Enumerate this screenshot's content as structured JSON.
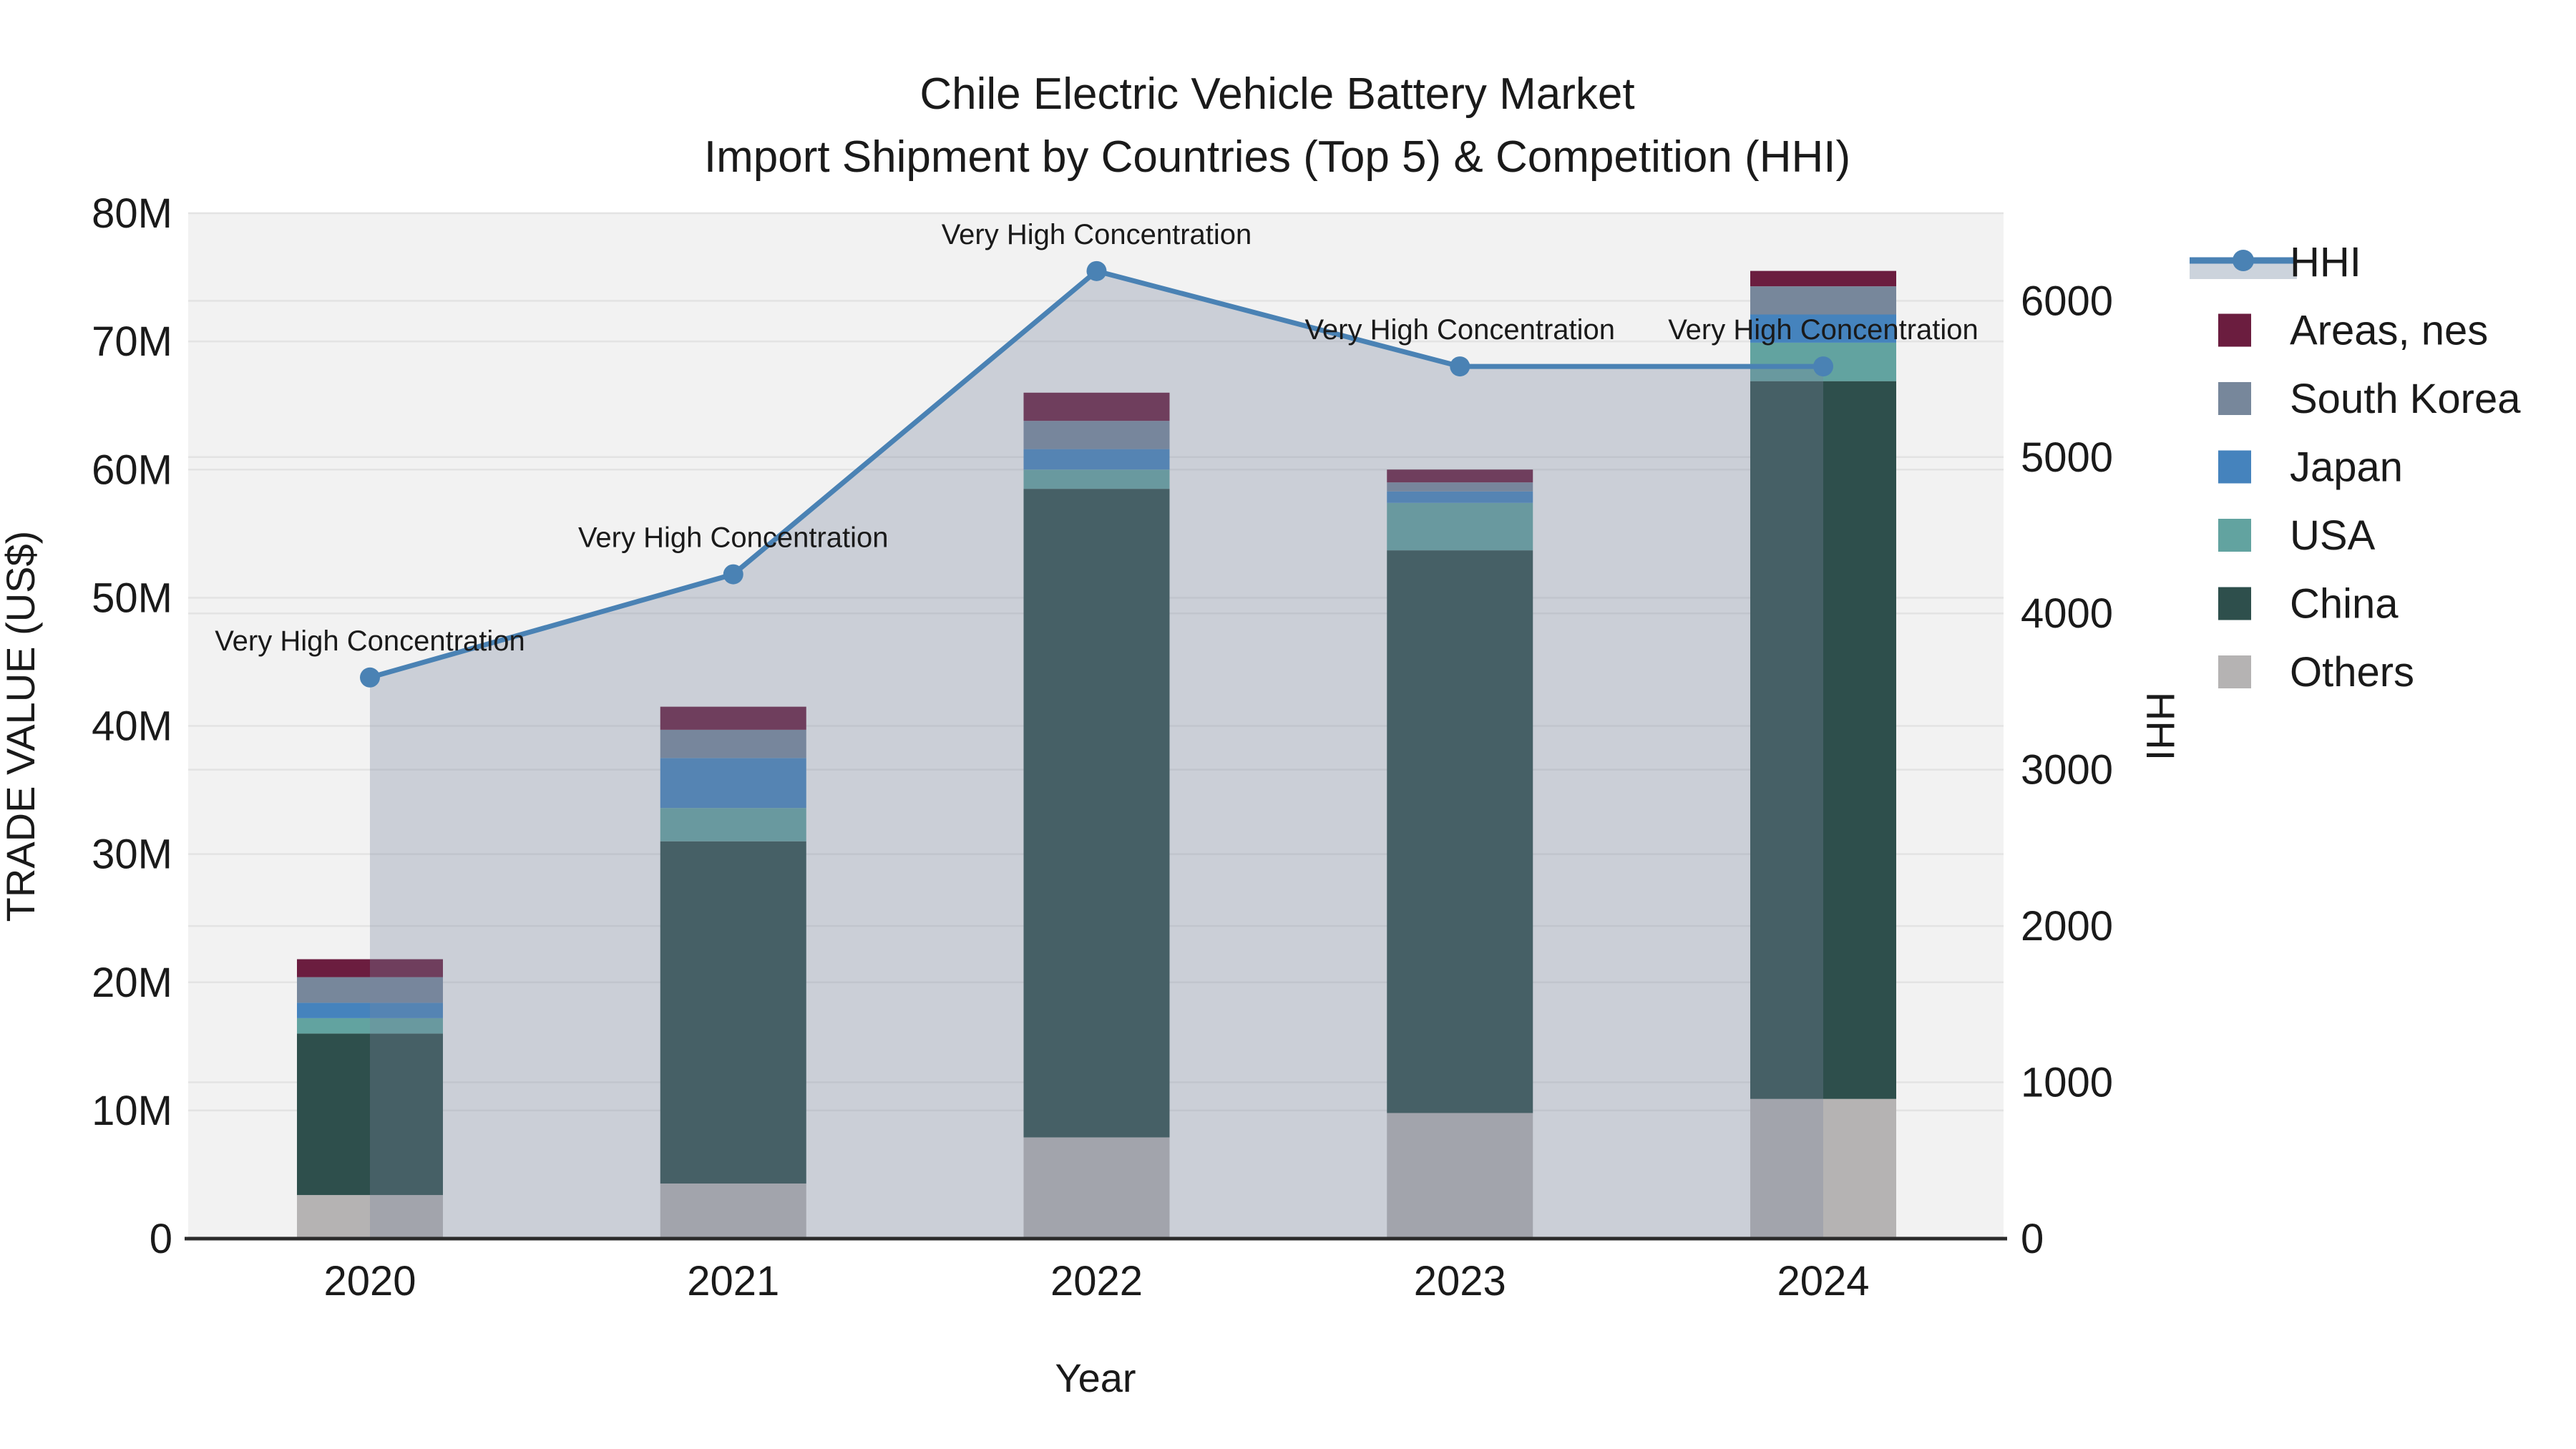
{
  "title": {
    "line1": "Chile Electric Vehicle Battery Market",
    "line2": "Import Shipment by Countries (Top 5) & Competition (HHI)"
  },
  "axes": {
    "x_label": "Year",
    "y_left_label": "TRADE VALUE (US$)",
    "y_right_label": "HHI"
  },
  "legend": {
    "items": [
      {
        "label": "HHI",
        "type": "line",
        "color": "#4a82b4",
        "band": "#ccd3dc"
      },
      {
        "label": "Areas, nes",
        "type": "swatch",
        "color": "#6b1d3f"
      },
      {
        "label": "South Korea",
        "type": "swatch",
        "color": "#77879b"
      },
      {
        "label": "Japan",
        "type": "swatch",
        "color": "#4583bd"
      },
      {
        "label": "USA",
        "type": "swatch",
        "color": "#62a3a0"
      },
      {
        "label": "China",
        "type": "swatch",
        "color": "#2e4f4c"
      },
      {
        "label": "Others",
        "type": "swatch",
        "color": "#b5b3b3"
      }
    ]
  },
  "chart_data": {
    "type": "bar",
    "combo": "stacked-bar+line",
    "title": "Chile Electric Vehicle Battery Market — Import Shipment by Countries (Top 5) & Competition (HHI)",
    "categories": [
      "2020",
      "2021",
      "2022",
      "2023",
      "2024"
    ],
    "bar_value_unit": "million US$",
    "series": [
      {
        "name": "Others",
        "color": "#b5b3b3",
        "values": [
          3.4,
          4.3,
          7.9,
          9.8,
          10.9
        ]
      },
      {
        "name": "China",
        "color": "#2e4f4c",
        "values": [
          12.6,
          26.7,
          50.6,
          43.9,
          56.0
        ]
      },
      {
        "name": "USA",
        "color": "#62a3a0",
        "values": [
          1.2,
          2.6,
          1.5,
          3.7,
          3.0
        ]
      },
      {
        "name": "Japan",
        "color": "#4583bd",
        "values": [
          1.2,
          3.9,
          1.6,
          0.9,
          2.2
        ]
      },
      {
        "name": "South Korea",
        "color": "#77879b",
        "values": [
          2.0,
          2.2,
          2.2,
          0.7,
          2.2
        ]
      },
      {
        "name": "Areas, nes",
        "color": "#6b1d3f",
        "values": [
          1.4,
          1.8,
          2.2,
          1.0,
          1.2
        ]
      }
    ],
    "bar_totals": [
      21.8,
      41.5,
      66.0,
      60.0,
      75.5
    ],
    "line": {
      "name": "HHI",
      "values": [
        3590,
        4250,
        6190,
        5580,
        5580
      ],
      "color": "#4a82b4",
      "area_fill": "rgba(120,135,160,0.32)",
      "annotation": "Very High Concentration"
    },
    "y_left": {
      "label": "TRADE VALUE (US$)",
      "max": 80,
      "ticks": [
        "0",
        "10M",
        "20M",
        "30M",
        "40M",
        "50M",
        "60M",
        "70M",
        "80M"
      ]
    },
    "y_right": {
      "label": "HHI",
      "max": 6560,
      "ticks": [
        "0",
        "1000",
        "2000",
        "3000",
        "4000",
        "5000",
        "6000"
      ]
    },
    "xlabel": "Year",
    "grid": true,
    "legend_position": "right",
    "plot_background": "#f2f2f2",
    "gridline_color": "#e3e3e3"
  }
}
